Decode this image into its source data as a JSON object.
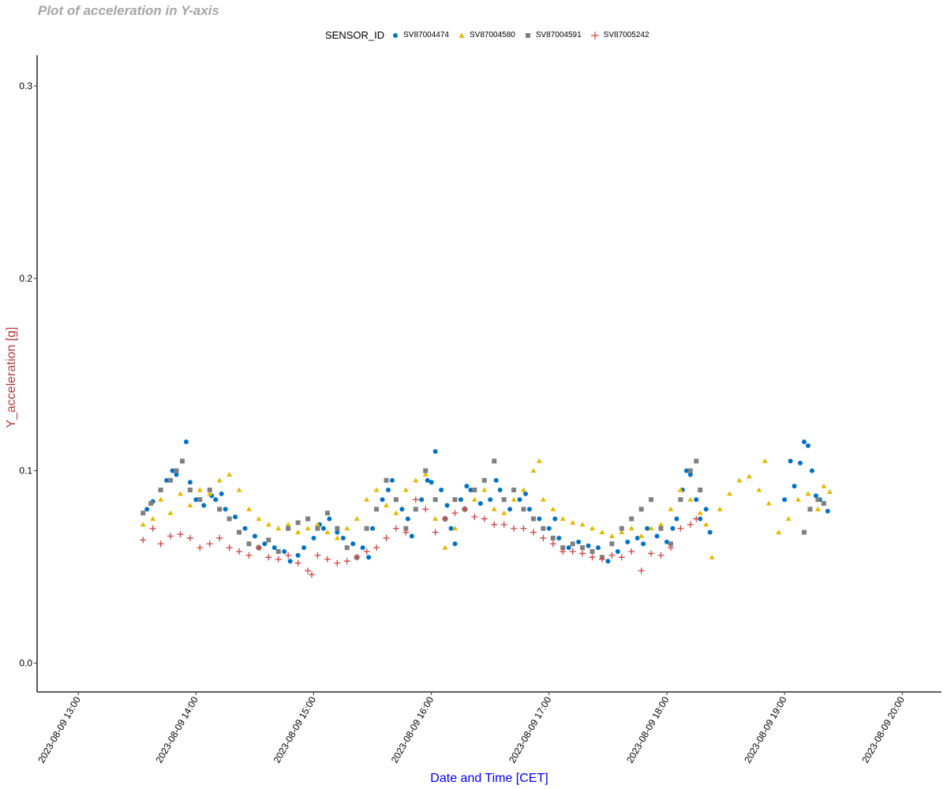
{
  "chart_data": {
    "type": "scatter",
    "title": "Plot of acceleration in Y-axis",
    "xlabel": "Date and Time [CET]",
    "ylabel": "Y_acceleration [g]",
    "xlim": [
      "2023-08-09 12:39",
      "2023-08-09 20:20"
    ],
    "ylim": [
      -0.015,
      0.316
    ],
    "x_ticks": [
      "2023-08-09 13:00",
      "2023-08-09 14:00",
      "2023-08-09 15:00",
      "2023-08-09 16:00",
      "2023-08-09 17:00",
      "2023-08-09 18:00",
      "2023-08-09 19:00",
      "2023-08-09 20:00"
    ],
    "y_ticks": [
      "0.0",
      "0.1",
      "0.2",
      "0.3"
    ],
    "grid": false,
    "legend": {
      "title": "SENSOR_ID",
      "placement": "top"
    },
    "axis_label_colors": {
      "x": "#0000ff",
      "y": "#b03a3a"
    },
    "series": [
      {
        "name": "SV87004474",
        "shape": "circle",
        "color": "#0072c6",
        "points": [
          [
            "13:35",
            0.08
          ],
          [
            "13:38",
            0.084
          ],
          [
            "13:42",
            0.09
          ],
          [
            "13:45",
            0.095
          ],
          [
            "13:48",
            0.1
          ],
          [
            "13:50",
            0.098
          ],
          [
            "13:53",
            0.105
          ],
          [
            "13:55",
            0.115
          ],
          [
            "13:57",
            0.094
          ],
          [
            "14:00",
            0.085
          ],
          [
            "14:04",
            0.082
          ],
          [
            "14:08",
            0.087
          ],
          [
            "14:10",
            0.085
          ],
          [
            "14:13",
            0.088
          ],
          [
            "14:15",
            0.08
          ],
          [
            "14:20",
            0.076
          ],
          [
            "14:25",
            0.07
          ],
          [
            "14:30",
            0.066
          ],
          [
            "14:35",
            0.062
          ],
          [
            "14:40",
            0.06
          ],
          [
            "14:45",
            0.058
          ],
          [
            "14:48",
            0.053
          ],
          [
            "14:52",
            0.056
          ],
          [
            "14:55",
            0.06
          ],
          [
            "15:00",
            0.065
          ],
          [
            "15:03",
            0.072
          ],
          [
            "15:05",
            0.07
          ],
          [
            "15:08",
            0.075
          ],
          [
            "15:12",
            0.068
          ],
          [
            "15:15",
            0.065
          ],
          [
            "15:20",
            0.062
          ],
          [
            "15:25",
            0.06
          ],
          [
            "15:28",
            0.055
          ],
          [
            "15:30",
            0.07
          ],
          [
            "15:35",
            0.085
          ],
          [
            "15:38",
            0.09
          ],
          [
            "15:40",
            0.095
          ],
          [
            "15:45",
            0.08
          ],
          [
            "15:48",
            0.075
          ],
          [
            "15:50",
            0.066
          ],
          [
            "15:55",
            0.085
          ],
          [
            "15:58",
            0.095
          ],
          [
            "16:00",
            0.094
          ],
          [
            "16:02",
            0.11
          ],
          [
            "16:05",
            0.09
          ],
          [
            "16:08",
            0.082
          ],
          [
            "16:10",
            0.07
          ],
          [
            "16:12",
            0.062
          ],
          [
            "16:15",
            0.085
          ],
          [
            "16:18",
            0.092
          ],
          [
            "16:20",
            0.09
          ],
          [
            "16:25",
            0.083
          ],
          [
            "16:30",
            0.085
          ],
          [
            "16:33",
            0.095
          ],
          [
            "16:35",
            0.09
          ],
          [
            "16:40",
            0.08
          ],
          [
            "16:45",
            0.085
          ],
          [
            "16:48",
            0.088
          ],
          [
            "16:50",
            0.08
          ],
          [
            "16:55",
            0.075
          ],
          [
            "17:00",
            0.07
          ],
          [
            "17:03",
            0.075
          ],
          [
            "17:05",
            0.065
          ],
          [
            "17:10",
            0.06
          ],
          [
            "17:15",
            0.063
          ],
          [
            "17:20",
            0.061
          ],
          [
            "17:25",
            0.06
          ],
          [
            "17:30",
            0.053
          ],
          [
            "17:35",
            0.058
          ],
          [
            "17:40",
            0.063
          ],
          [
            "17:45",
            0.065
          ],
          [
            "17:48",
            0.062
          ],
          [
            "17:50",
            0.07
          ],
          [
            "17:55",
            0.066
          ],
          [
            "18:00",
            0.063
          ],
          [
            "18:03",
            0.07
          ],
          [
            "18:05",
            0.075
          ],
          [
            "18:08",
            0.09
          ],
          [
            "18:10",
            0.1
          ],
          [
            "18:12",
            0.098
          ],
          [
            "18:15",
            0.085
          ],
          [
            "18:17",
            0.075
          ],
          [
            "18:20",
            0.08
          ],
          [
            "18:22",
            0.068
          ],
          [
            "19:00",
            0.085
          ],
          [
            "19:03",
            0.105
          ],
          [
            "19:05",
            0.092
          ],
          [
            "19:08",
            0.104
          ],
          [
            "19:10",
            0.115
          ],
          [
            "19:12",
            0.113
          ],
          [
            "19:14",
            0.1
          ],
          [
            "19:16",
            0.087
          ],
          [
            "19:18",
            0.085
          ],
          [
            "19:20",
            0.083
          ],
          [
            "19:22",
            0.079
          ]
        ]
      },
      {
        "name": "SV87004580",
        "shape": "triangle",
        "color": "#e8b800",
        "points": [
          [
            "13:33",
            0.072
          ],
          [
            "13:38",
            0.075
          ],
          [
            "13:42",
            0.085
          ],
          [
            "13:47",
            0.078
          ],
          [
            "13:52",
            0.088
          ],
          [
            "13:57",
            0.082
          ],
          [
            "14:02",
            0.09
          ],
          [
            "14:07",
            0.088
          ],
          [
            "14:12",
            0.095
          ],
          [
            "14:17",
            0.098
          ],
          [
            "14:22",
            0.09
          ],
          [
            "14:27",
            0.08
          ],
          [
            "14:32",
            0.075
          ],
          [
            "14:37",
            0.072
          ],
          [
            "14:42",
            0.07
          ],
          [
            "14:47",
            0.072
          ],
          [
            "14:52",
            0.068
          ],
          [
            "14:57",
            0.07
          ],
          [
            "15:02",
            0.072
          ],
          [
            "15:07",
            0.068
          ],
          [
            "15:12",
            0.065
          ],
          [
            "15:17",
            0.07
          ],
          [
            "15:22",
            0.075
          ],
          [
            "15:27",
            0.085
          ],
          [
            "15:32",
            0.09
          ],
          [
            "15:37",
            0.082
          ],
          [
            "15:42",
            0.078
          ],
          [
            "15:47",
            0.09
          ],
          [
            "15:52",
            0.095
          ],
          [
            "15:57",
            0.098
          ],
          [
            "16:02",
            0.075
          ],
          [
            "16:07",
            0.06
          ],
          [
            "16:12",
            0.07
          ],
          [
            "16:17",
            0.08
          ],
          [
            "16:22",
            0.085
          ],
          [
            "16:27",
            0.09
          ],
          [
            "16:32",
            0.08
          ],
          [
            "16:37",
            0.078
          ],
          [
            "16:42",
            0.085
          ],
          [
            "16:47",
            0.09
          ],
          [
            "16:52",
            0.1
          ],
          [
            "16:55",
            0.105
          ],
          [
            "16:57",
            0.085
          ],
          [
            "17:02",
            0.08
          ],
          [
            "17:07",
            0.075
          ],
          [
            "17:12",
            0.073
          ],
          [
            "17:17",
            0.072
          ],
          [
            "17:22",
            0.07
          ],
          [
            "17:27",
            0.068
          ],
          [
            "17:32",
            0.066
          ],
          [
            "17:37",
            0.068
          ],
          [
            "17:42",
            0.07
          ],
          [
            "17:47",
            0.066
          ],
          [
            "17:52",
            0.07
          ],
          [
            "17:57",
            0.072
          ],
          [
            "18:02",
            0.08
          ],
          [
            "18:07",
            0.09
          ],
          [
            "18:12",
            0.085
          ],
          [
            "18:17",
            0.078
          ],
          [
            "18:20",
            0.072
          ],
          [
            "18:23",
            0.055
          ],
          [
            "18:27",
            0.08
          ],
          [
            "18:32",
            0.088
          ],
          [
            "18:37",
            0.095
          ],
          [
            "18:42",
            0.097
          ],
          [
            "18:47",
            0.09
          ],
          [
            "18:50",
            0.105
          ],
          [
            "18:52",
            0.083
          ],
          [
            "18:57",
            0.068
          ],
          [
            "19:02",
            0.075
          ],
          [
            "19:07",
            0.085
          ],
          [
            "19:12",
            0.088
          ],
          [
            "19:17",
            0.08
          ],
          [
            "19:20",
            0.092
          ],
          [
            "19:23",
            0.089
          ]
        ]
      },
      {
        "name": "SV87004591",
        "shape": "square",
        "color": "#808080",
        "points": [
          [
            "13:33",
            0.078
          ],
          [
            "13:37",
            0.083
          ],
          [
            "13:42",
            0.09
          ],
          [
            "13:47",
            0.095
          ],
          [
            "13:50",
            0.1
          ],
          [
            "13:53",
            0.105
          ],
          [
            "13:57",
            0.09
          ],
          [
            "14:02",
            0.085
          ],
          [
            "14:07",
            0.09
          ],
          [
            "14:12",
            0.08
          ],
          [
            "14:17",
            0.075
          ],
          [
            "14:22",
            0.068
          ],
          [
            "14:27",
            0.062
          ],
          [
            "14:32",
            0.06
          ],
          [
            "14:37",
            0.064
          ],
          [
            "14:42",
            0.058
          ],
          [
            "14:47",
            0.07
          ],
          [
            "14:52",
            0.073
          ],
          [
            "14:57",
            0.075
          ],
          [
            "15:02",
            0.07
          ],
          [
            "15:07",
            0.078
          ],
          [
            "15:12",
            0.07
          ],
          [
            "15:17",
            0.06
          ],
          [
            "15:22",
            0.055
          ],
          [
            "15:27",
            0.07
          ],
          [
            "15:32",
            0.08
          ],
          [
            "15:37",
            0.095
          ],
          [
            "15:42",
            0.085
          ],
          [
            "15:47",
            0.07
          ],
          [
            "15:52",
            0.08
          ],
          [
            "15:57",
            0.1
          ],
          [
            "16:02",
            0.085
          ],
          [
            "16:07",
            0.075
          ],
          [
            "16:12",
            0.085
          ],
          [
            "16:17",
            0.08
          ],
          [
            "16:22",
            0.09
          ],
          [
            "16:27",
            0.095
          ],
          [
            "16:32",
            0.105
          ],
          [
            "16:37",
            0.085
          ],
          [
            "16:42",
            0.09
          ],
          [
            "16:47",
            0.08
          ],
          [
            "16:52",
            0.075
          ],
          [
            "16:57",
            0.07
          ],
          [
            "17:02",
            0.065
          ],
          [
            "17:07",
            0.06
          ],
          [
            "17:12",
            0.062
          ],
          [
            "17:17",
            0.06
          ],
          [
            "17:22",
            0.058
          ],
          [
            "17:27",
            0.055
          ],
          [
            "17:32",
            0.062
          ],
          [
            "17:37",
            0.07
          ],
          [
            "17:42",
            0.075
          ],
          [
            "17:47",
            0.08
          ],
          [
            "17:52",
            0.085
          ],
          [
            "17:57",
            0.07
          ],
          [
            "18:02",
            0.062
          ],
          [
            "18:07",
            0.085
          ],
          [
            "18:12",
            0.1
          ],
          [
            "18:15",
            0.105
          ],
          [
            "18:17",
            0.09
          ],
          [
            "19:10",
            0.068
          ],
          [
            "19:13",
            0.08
          ],
          [
            "19:17",
            0.085
          ],
          [
            "19:20",
            0.083
          ]
        ]
      },
      {
        "name": "SV87005242",
        "shape": "plus",
        "color": "#cc4444",
        "points": [
          [
            "13:33",
            0.064
          ],
          [
            "13:38",
            0.07
          ],
          [
            "13:42",
            0.062
          ],
          [
            "13:47",
            0.066
          ],
          [
            "13:52",
            0.067
          ],
          [
            "13:57",
            0.065
          ],
          [
            "14:02",
            0.06
          ],
          [
            "14:07",
            0.062
          ],
          [
            "14:12",
            0.065
          ],
          [
            "14:17",
            0.06
          ],
          [
            "14:22",
            0.058
          ],
          [
            "14:27",
            0.056
          ],
          [
            "14:32",
            0.06
          ],
          [
            "14:37",
            0.055
          ],
          [
            "14:42",
            0.054
          ],
          [
            "14:47",
            0.056
          ],
          [
            "14:52",
            0.052
          ],
          [
            "14:57",
            0.048
          ],
          [
            "14:59",
            0.046
          ],
          [
            "15:02",
            0.056
          ],
          [
            "15:07",
            0.054
          ],
          [
            "15:12",
            0.052
          ],
          [
            "15:17",
            0.053
          ],
          [
            "15:22",
            0.055
          ],
          [
            "15:27",
            0.058
          ],
          [
            "15:32",
            0.06
          ],
          [
            "15:37",
            0.065
          ],
          [
            "15:42",
            0.07
          ],
          [
            "15:47",
            0.068
          ],
          [
            "15:52",
            0.085
          ],
          [
            "15:57",
            0.08
          ],
          [
            "16:02",
            0.068
          ],
          [
            "16:07",
            0.075
          ],
          [
            "16:12",
            0.078
          ],
          [
            "16:17",
            0.08
          ],
          [
            "16:22",
            0.076
          ],
          [
            "16:27",
            0.075
          ],
          [
            "16:32",
            0.072
          ],
          [
            "16:37",
            0.072
          ],
          [
            "16:42",
            0.07
          ],
          [
            "16:47",
            0.07
          ],
          [
            "16:52",
            0.068
          ],
          [
            "16:57",
            0.065
          ],
          [
            "17:02",
            0.062
          ],
          [
            "17:07",
            0.058
          ],
          [
            "17:12",
            0.058
          ],
          [
            "17:17",
            0.057
          ],
          [
            "17:22",
            0.055
          ],
          [
            "17:27",
            0.054
          ],
          [
            "17:32",
            0.056
          ],
          [
            "17:37",
            0.055
          ],
          [
            "17:42",
            0.058
          ],
          [
            "17:47",
            0.048
          ],
          [
            "17:52",
            0.057
          ],
          [
            "17:57",
            0.056
          ],
          [
            "18:02",
            0.06
          ],
          [
            "18:07",
            0.07
          ],
          [
            "18:12",
            0.072
          ],
          [
            "18:15",
            0.075
          ]
        ]
      }
    ]
  }
}
